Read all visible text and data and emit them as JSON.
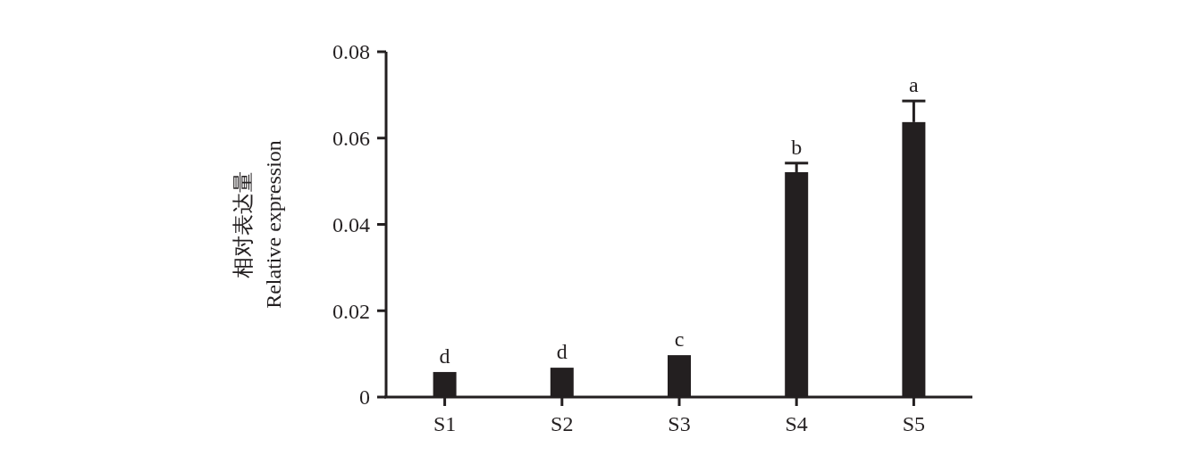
{
  "chart_data": {
    "type": "bar",
    "ylabel": "相对表达量\nRelative expression",
    "categories": [
      "S1",
      "S2",
      "S3",
      "S4",
      "S5"
    ],
    "values": [
      0.0058,
      0.0068,
      0.0097,
      0.0521,
      0.0637
    ],
    "errors": [
      null,
      null,
      null,
      0.0021,
      0.0049
    ],
    "color": "#231f20",
    "ylim": [
      0,
      0.08
    ],
    "yticks": [
      0,
      0.02,
      0.04,
      0.06,
      0.08
    ],
    "grid": false,
    "annotations": [
      {
        "text": "d",
        "x": "S1",
        "y": 0.0058
      },
      {
        "text": "d",
        "x": "S2",
        "y": 0.0068
      },
      {
        "text": "c",
        "x": "S3",
        "y": 0.0097
      },
      {
        "text": "b",
        "x": "S4",
        "y": 0.0542
      },
      {
        "text": "a",
        "x": "S5",
        "y": 0.0686
      }
    ]
  }
}
